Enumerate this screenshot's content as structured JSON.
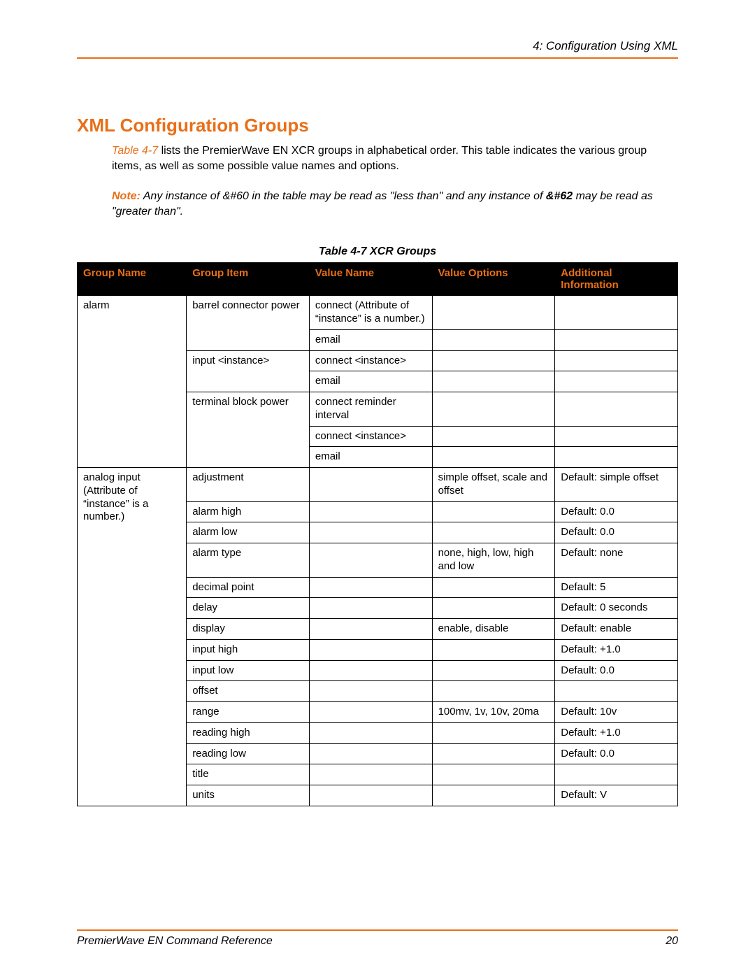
{
  "header": {
    "chapter": "4: Configuration Using XML"
  },
  "section": {
    "title": "XML Configuration Groups",
    "table_ref": "Table 4-7",
    "intro_rest": " lists the PremierWave EN XCR groups in alphabetical order. This table indicates the various group items, as well as some possible value names and options.",
    "note_label": "Note:",
    "note_body_1": "   Any instance of &#60 in the table may be read as \"less than\" and any instance of ",
    "note_body_2": "&#62",
    "note_body_3": " may be read as \"greater than\"."
  },
  "table": {
    "caption": "Table 4-7  XCR Groups",
    "headers": {
      "group_name": "Group Name",
      "group_item": "Group Item",
      "value_name": "Value Name",
      "value_options": "Value Options",
      "additional_info": "Additional Information"
    },
    "colors": {
      "header_bg": "#000000",
      "header_fg": "#e86f18",
      "border": "#000000",
      "accent": "#e86f18"
    },
    "groups": [
      {
        "name": "alarm",
        "items": [
          {
            "item": "barrel connector power",
            "values": [
              {
                "value_name": "connect (Attribute of “instance” is a number.)",
                "value_options": "",
                "additional": ""
              },
              {
                "value_name": "email",
                "value_options": "",
                "additional": ""
              }
            ]
          },
          {
            "item": "input <instance>",
            "values": [
              {
                "value_name": "connect <instance>",
                "value_options": "",
                "additional": ""
              },
              {
                "value_name": "email",
                "value_options": "",
                "additional": ""
              }
            ]
          },
          {
            "item": "terminal block power",
            "values": [
              {
                "value_name": "connect reminder interval",
                "value_options": "",
                "additional": ""
              },
              {
                "value_name": "connect <instance>",
                "value_options": "",
                "additional": ""
              },
              {
                "value_name": "email",
                "value_options": "",
                "additional": ""
              }
            ]
          }
        ]
      },
      {
        "name": "analog input (Attribute of “instance” is a number.)",
        "items": [
          {
            "item": "adjustment",
            "values": [
              {
                "value_name": "",
                "value_options": "simple offset, scale and offset",
                "additional": "Default: simple offset"
              }
            ]
          },
          {
            "item": "alarm high",
            "values": [
              {
                "value_name": "",
                "value_options": "",
                "additional": "Default: 0.0"
              }
            ]
          },
          {
            "item": "alarm low",
            "values": [
              {
                "value_name": "",
                "value_options": "",
                "additional": "Default: 0.0"
              }
            ]
          },
          {
            "item": "alarm type",
            "values": [
              {
                "value_name": "",
                "value_options": "none, high, low, high and low",
                "additional": "Default: none"
              }
            ]
          },
          {
            "item": "decimal point",
            "values": [
              {
                "value_name": "",
                "value_options": "",
                "additional": "Default: 5"
              }
            ]
          },
          {
            "item": "delay",
            "values": [
              {
                "value_name": "",
                "value_options": "",
                "additional": "Default: 0 seconds"
              }
            ]
          },
          {
            "item": "display",
            "values": [
              {
                "value_name": "",
                "value_options": "enable, disable",
                "additional": "Default: enable"
              }
            ]
          },
          {
            "item": "input high",
            "values": [
              {
                "value_name": "",
                "value_options": "",
                "additional": "Default: +1.0"
              }
            ]
          },
          {
            "item": "input low",
            "values": [
              {
                "value_name": "",
                "value_options": "",
                "additional": "Default: 0.0"
              }
            ]
          },
          {
            "item": "offset",
            "values": [
              {
                "value_name": "",
                "value_options": "",
                "additional": ""
              }
            ]
          },
          {
            "item": "range",
            "values": [
              {
                "value_name": "",
                "value_options": "100mv, 1v, 10v, 20ma",
                "additional": "Default: 10v"
              }
            ]
          },
          {
            "item": "reading high",
            "values": [
              {
                "value_name": "",
                "value_options": "",
                "additional": "Default: +1.0"
              }
            ]
          },
          {
            "item": "reading low",
            "values": [
              {
                "value_name": "",
                "value_options": "",
                "additional": "Default: 0.0"
              }
            ]
          },
          {
            "item": "title",
            "values": [
              {
                "value_name": "",
                "value_options": "",
                "additional": ""
              }
            ]
          },
          {
            "item": "units",
            "values": [
              {
                "value_name": "",
                "value_options": "",
                "additional": "Default: V"
              }
            ]
          }
        ]
      }
    ]
  },
  "footer": {
    "doc_title": "PremierWave EN Command Reference",
    "page_number": "20"
  }
}
